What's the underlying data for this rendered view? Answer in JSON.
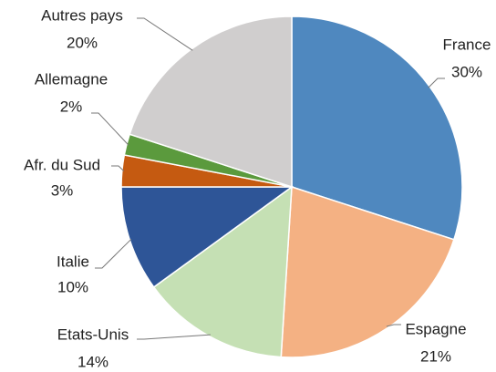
{
  "chart_data": {
    "type": "pie",
    "categories": [
      "France",
      "Espagne",
      "Etats-Unis",
      "Italie",
      "Afr. du Sud",
      "Allemagne",
      "Autres pays"
    ],
    "values": [
      30,
      21,
      14,
      10,
      3,
      2,
      20
    ],
    "value_labels": [
      "30%",
      "21%",
      "14%",
      "10%",
      "3%",
      "2%",
      "20%"
    ],
    "colors": [
      "#4f88bf",
      "#f4b183",
      "#c5e0b4",
      "#2e5597",
      "#c55a11",
      "#5b9a3d",
      "#d0cece"
    ]
  }
}
